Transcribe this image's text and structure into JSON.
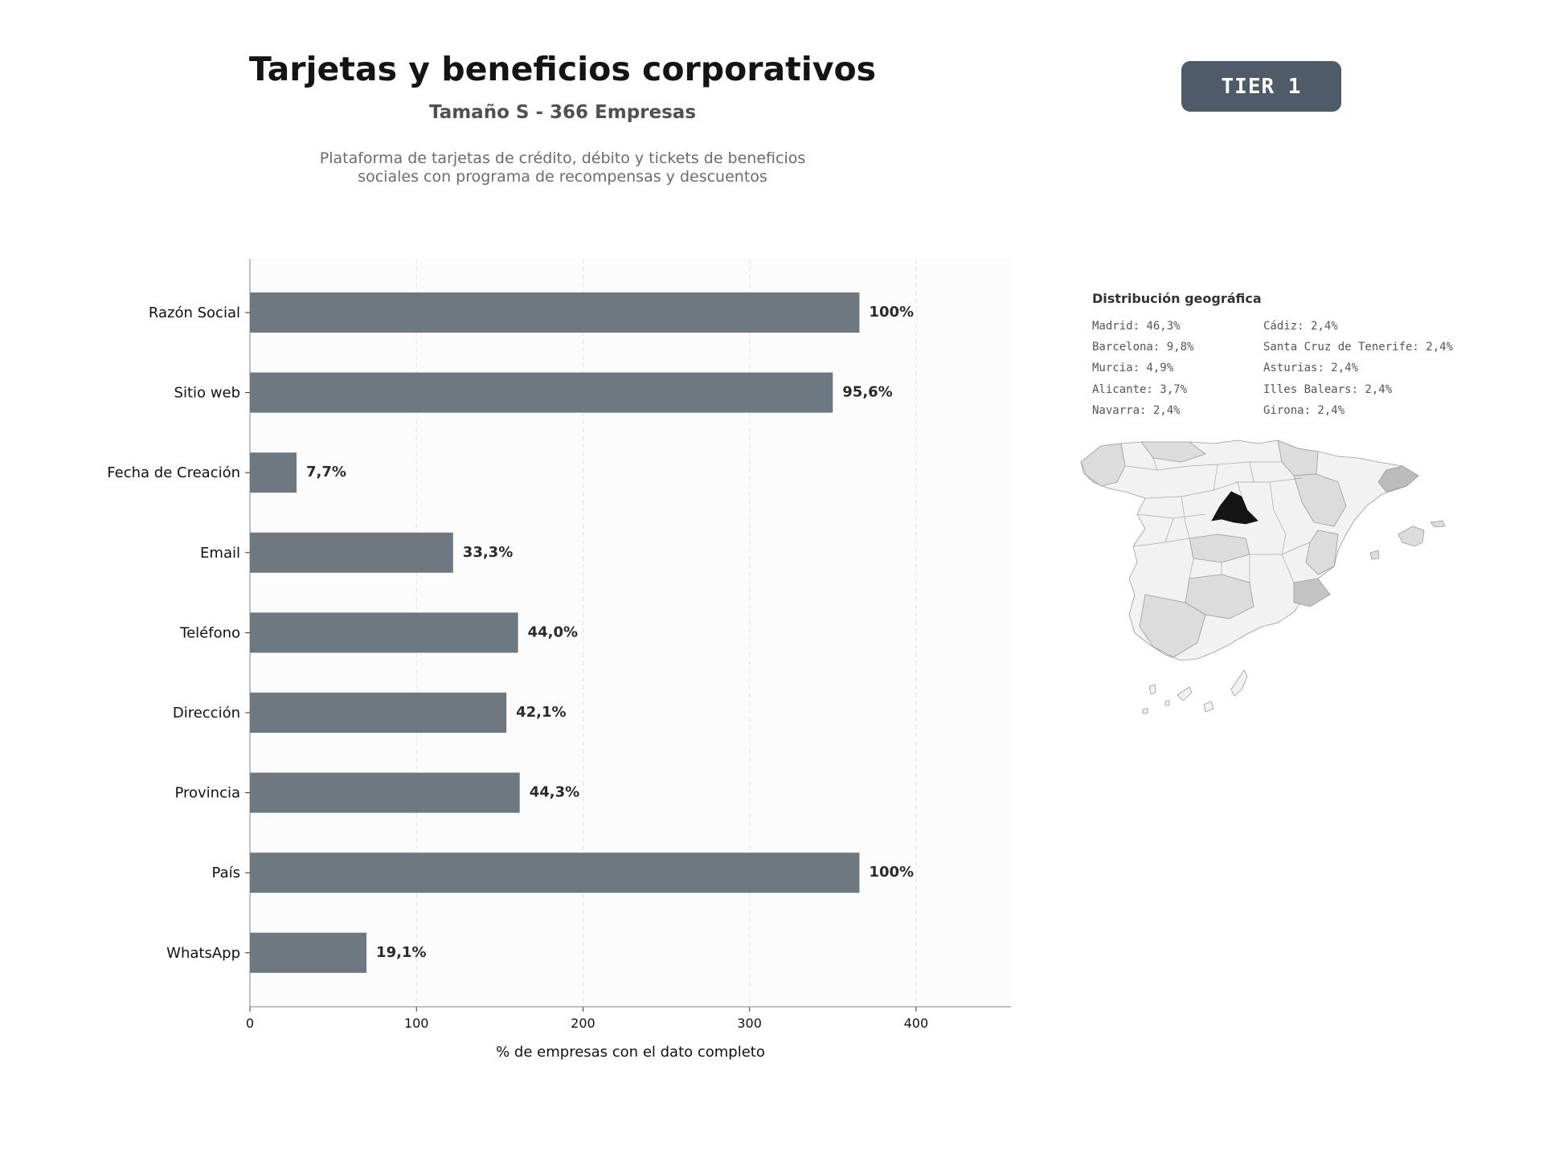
{
  "header": {
    "title": "Tarjetas y beneficios corporativos",
    "subtitle": "Tamaño S - 366 Empresas",
    "description_line1": "Plataforma de tarjetas de crédito, débito y tickets de beneficios",
    "description_line2": "sociales con programa de recompensas y descuentos",
    "tier": "TIER 1"
  },
  "chart_data": {
    "type": "bar",
    "orientation": "horizontal",
    "categories": [
      "Razón Social",
      "Sitio web",
      "Fecha de Creación",
      "Email",
      "Teléfono",
      "Dirección",
      "Provincia",
      "País",
      "WhatsApp"
    ],
    "values": [
      366,
      350,
      28,
      122,
      161,
      154,
      162,
      366,
      70
    ],
    "value_labels": [
      "100%",
      "95,6%",
      "7,7%",
      "33,3%",
      "44,0%",
      "42,1%",
      "44,3%",
      "100%",
      "19,1%"
    ],
    "xlabel": "% de empresas con el dato completo",
    "xticks": [
      0,
      100,
      200,
      300,
      400
    ],
    "xlim": [
      0,
      457
    ],
    "grid": "vertical-dashed",
    "bar_color": "#6e7881"
  },
  "geo": {
    "title": "Distribución geográfica",
    "col1": [
      "Madrid: 46,3%",
      "Barcelona: 9,8%",
      "Murcia: 4,9%",
      "Alicante: 3,7%",
      "Navarra: 2,4%"
    ],
    "col2": [
      "Cádiz: 2,4%",
      "Santa Cruz de Tenerife: 2,4%",
      "Asturias: 2,4%",
      "Illes Balears: 2,4%",
      "Girona: 2,4%"
    ],
    "map_colors": {
      "highlight": "#151515",
      "medium": "#c4c4c4",
      "light": "#dcdcdc",
      "base": "#f2f2f2"
    }
  }
}
